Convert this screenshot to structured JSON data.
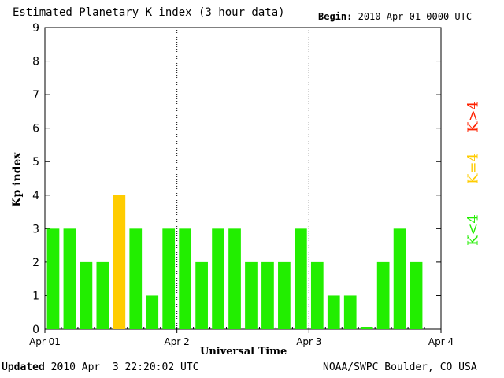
{
  "header": {
    "title": "Estimated Planetary K index (3 hour data)",
    "begin_label": "Begin:",
    "begin_value": "2010 Apr 01 0000 UTC"
  },
  "footer": {
    "updated_label": "Updated",
    "updated_value": "2010 Apr  3 22:20:02 UTC",
    "credit": "NOAA/SWPC Boulder, CO USA"
  },
  "legend": {
    "low": {
      "label": "K<4",
      "color": "#22ee00"
    },
    "mid": {
      "label": "K=4",
      "color": "#ffcc00"
    },
    "high": {
      "label": "K>4",
      "color": "#ff2200"
    }
  },
  "chart_data": {
    "type": "bar",
    "title": "Estimated Planetary K index (3 hour data)",
    "xlabel": "Universal Time",
    "ylabel": "Kp index",
    "ylim": [
      0,
      9
    ],
    "yticks": [
      0,
      1,
      2,
      3,
      4,
      5,
      6,
      7,
      8,
      9
    ],
    "xticks": [
      "Apr 01",
      "Apr 2",
      "Apr 3",
      "Apr 4"
    ],
    "bar_interval_hours": 3,
    "values": [
      3,
      3,
      2,
      2,
      4,
      3,
      1,
      3,
      3,
      2,
      3,
      3,
      2,
      2,
      2,
      3,
      2,
      1,
      1,
      0.07,
      2,
      3,
      2
    ],
    "colors": {
      "below_4": "#22ee00",
      "equal_4": "#ffcc00",
      "above_4": "#ff2200"
    },
    "day_separators": [
      "Apr 2",
      "Apr 3"
    ]
  }
}
